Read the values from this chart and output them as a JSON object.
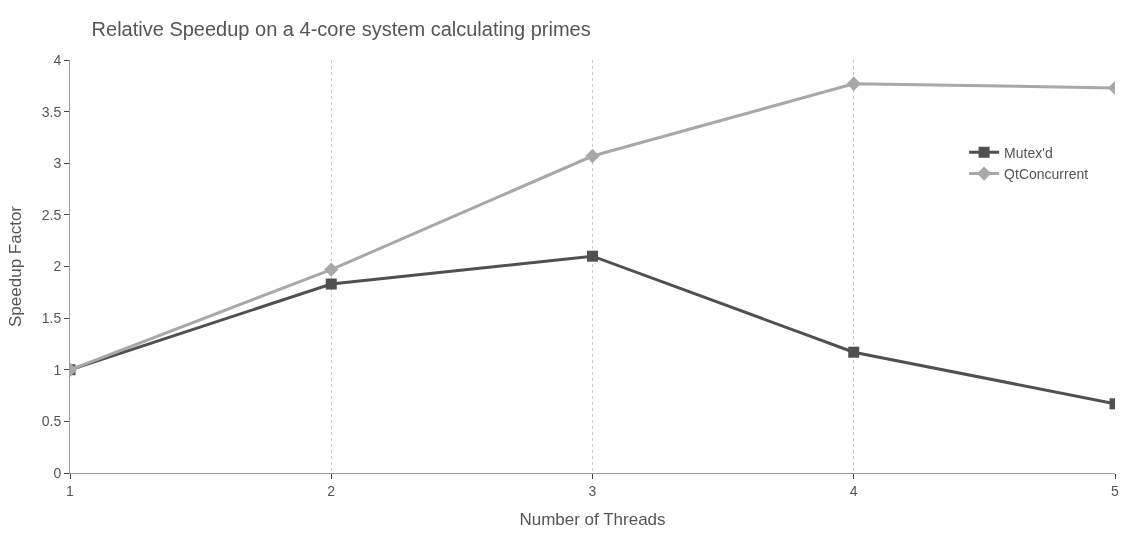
{
  "chart_data": {
    "type": "line",
    "title": "Relative Speedup on a 4-core system calculating primes",
    "xlabel": "Number of Threads",
    "ylabel": "Speedup Factor",
    "x": [
      1,
      2,
      3,
      4,
      5
    ],
    "series": [
      {
        "name": "Mutex'd",
        "color": "#505050",
        "marker": "square",
        "values": [
          1,
          1.83,
          2.1,
          1.17,
          0.67
        ]
      },
      {
        "name": "QtConcurrent",
        "color": "#a8a8a8",
        "marker": "diamond",
        "values": [
          1,
          1.97,
          3.07,
          3.77,
          3.73
        ]
      }
    ],
    "xlim": [
      1,
      5
    ],
    "xticks": [
      1,
      2,
      3,
      4,
      5
    ],
    "ylim": [
      0,
      4
    ],
    "yticks": [
      0,
      0.5,
      1,
      1.5,
      2,
      2.5,
      3,
      3.5,
      4
    ],
    "grid": "x",
    "legend": "right",
    "line_style": "solid"
  }
}
